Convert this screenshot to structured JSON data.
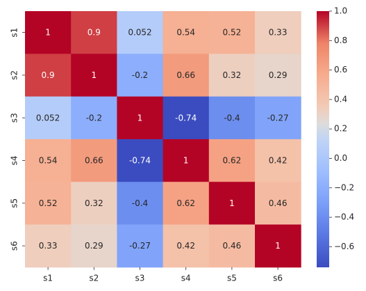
{
  "chart_data": {
    "type": "heatmap",
    "title": "",
    "xlabel": "",
    "ylabel": "",
    "x_categories": [
      "s1",
      "s2",
      "s3",
      "s4",
      "s5",
      "s6"
    ],
    "y_categories": [
      "s1",
      "s2",
      "s3",
      "s4",
      "s5",
      "s6"
    ],
    "values": [
      [
        1,
        0.9,
        0.052,
        0.54,
        0.52,
        0.33
      ],
      [
        0.9,
        1,
        -0.2,
        0.66,
        0.32,
        0.29
      ],
      [
        0.052,
        -0.2,
        1,
        -0.74,
        -0.4,
        -0.27
      ],
      [
        0.54,
        0.66,
        -0.74,
        1,
        0.62,
        0.42
      ],
      [
        0.52,
        0.32,
        -0.4,
        0.62,
        1,
        0.46
      ],
      [
        0.33,
        0.29,
        -0.27,
        0.42,
        0.46,
        1
      ]
    ],
    "cell_labels": [
      [
        "1",
        "0.9",
        "0.052",
        "0.54",
        "0.52",
        "0.33"
      ],
      [
        "0.9",
        "1",
        "-0.2",
        "0.66",
        "0.32",
        "0.29"
      ],
      [
        "0.052",
        "-0.2",
        "1",
        "-0.74",
        "-0.4",
        "-0.27"
      ],
      [
        "0.54",
        "0.66",
        "-0.74",
        "1",
        "0.62",
        "0.42"
      ],
      [
        "0.52",
        "0.32",
        "-0.4",
        "0.62",
        "1",
        "0.46"
      ],
      [
        "0.33",
        "0.29",
        "-0.27",
        "0.42",
        "0.46",
        "1"
      ]
    ],
    "colormap": "coolwarm",
    "color_range": [
      -0.74,
      1
    ],
    "colorbar_ticks": [
      1.0,
      0.8,
      0.6,
      0.4,
      0.2,
      0.0,
      -0.2,
      -0.4,
      -0.6
    ],
    "colorbar_tick_labels": [
      "1.0",
      "0.8",
      "0.6",
      "0.4",
      "0.2",
      "0.0",
      "−0.2",
      "−0.4",
      "−0.6"
    ],
    "grid": false,
    "legend": "colorbar-right"
  }
}
